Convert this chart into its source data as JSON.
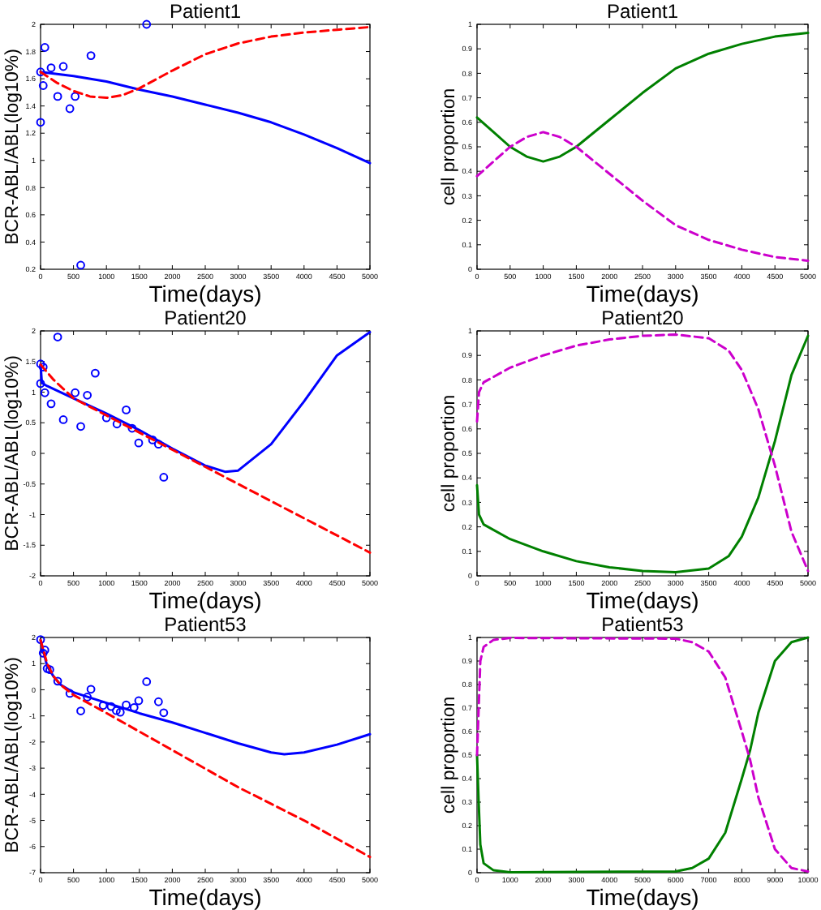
{
  "chart_data": [
    {
      "type": "line",
      "title": "Patient1",
      "xlabel": "Time(days)",
      "ylabel": "BCR-ABL/ABL(log10%)",
      "xlim": [
        0,
        5000
      ],
      "xticks": [
        0,
        500,
        1000,
        1500,
        2000,
        2500,
        3000,
        3500,
        4000,
        4500,
        5000
      ],
      "ylim": [
        0.2,
        2
      ],
      "yticks": [
        0.2,
        0.4,
        0.6,
        0.8,
        1,
        1.2,
        1.4,
        1.6,
        1.8,
        2
      ],
      "grid": false,
      "series": [
        {
          "type": "scatter",
          "marker": "circle",
          "color": "#0000ff",
          "x": [
            0,
            0,
            40,
            65,
            160,
            260,
            345,
            445,
            525,
            610,
            765,
            1610
          ],
          "values": [
            1.28,
            1.65,
            1.55,
            1.83,
            1.68,
            1.47,
            1.69,
            1.38,
            1.47,
            0.23,
            1.77,
            2.0
          ]
        },
        {
          "type": "line",
          "line_style": "solid",
          "color": "#0000ff",
          "x": [
            0,
            500,
            1000,
            1500,
            2000,
            2500,
            3000,
            3500,
            4000,
            4500,
            5000
          ],
          "values": [
            1.65,
            1.62,
            1.58,
            1.52,
            1.47,
            1.41,
            1.35,
            1.28,
            1.19,
            1.09,
            0.98
          ]
        },
        {
          "type": "line",
          "line_style": "dashed",
          "color": "#ff0000",
          "x": [
            0,
            250,
            500,
            750,
            1000,
            1250,
            1500,
            2000,
            2500,
            3000,
            3500,
            4000,
            4500,
            5000
          ],
          "values": [
            1.65,
            1.57,
            1.51,
            1.47,
            1.46,
            1.48,
            1.53,
            1.66,
            1.78,
            1.86,
            1.91,
            1.94,
            1.96,
            1.98
          ]
        }
      ]
    },
    {
      "type": "line",
      "title": "Patient1",
      "xlabel": "Time(days)",
      "ylabel": "cell proportion",
      "xlim": [
        0,
        5000
      ],
      "xticks": [
        0,
        500,
        1000,
        1500,
        2000,
        2500,
        3000,
        3500,
        4000,
        4500,
        5000
      ],
      "ylim": [
        0,
        1
      ],
      "yticks": [
        0,
        0.1,
        0.2,
        0.3,
        0.4,
        0.5,
        0.6,
        0.7,
        0.8,
        0.9,
        1
      ],
      "grid": false,
      "series": [
        {
          "type": "line",
          "line_style": "solid",
          "color": "#008000",
          "x": [
            0,
            250,
            500,
            750,
            1000,
            1250,
            1500,
            2000,
            2500,
            3000,
            3500,
            4000,
            4500,
            5000
          ],
          "values": [
            0.62,
            0.56,
            0.5,
            0.46,
            0.44,
            0.46,
            0.5,
            0.61,
            0.72,
            0.82,
            0.88,
            0.92,
            0.95,
            0.965
          ]
        },
        {
          "type": "line",
          "line_style": "dashed",
          "color": "#cc00cc",
          "x": [
            0,
            250,
            500,
            750,
            1000,
            1250,
            1500,
            2000,
            2500,
            3000,
            3500,
            4000,
            4500,
            5000
          ],
          "values": [
            0.38,
            0.44,
            0.5,
            0.54,
            0.56,
            0.54,
            0.5,
            0.39,
            0.28,
            0.18,
            0.12,
            0.08,
            0.05,
            0.035
          ]
        }
      ]
    },
    {
      "type": "line",
      "title": "Patient20",
      "xlabel": "Time(days)",
      "ylabel": "BCR-ABL/ABL(log10%)",
      "xlim": [
        0,
        5000
      ],
      "xticks": [
        0,
        500,
        1000,
        1500,
        2000,
        2500,
        3000,
        3500,
        4000,
        4500,
        5000
      ],
      "ylim": [
        -2,
        2
      ],
      "yticks": [
        -2,
        -1.5,
        -1,
        -0.5,
        0,
        0.5,
        1,
        1.5,
        2
      ],
      "grid": false,
      "series": [
        {
          "type": "scatter",
          "marker": "circle",
          "color": "#0000ff",
          "x": [
            0,
            40,
            0,
            65,
            160,
            260,
            345,
            610,
            525,
            710,
            830,
            1000,
            1160,
            1300,
            1390,
            1490,
            1700,
            1790,
            1870
          ],
          "values": [
            1.46,
            1.41,
            1.14,
            0.99,
            0.81,
            1.9,
            0.55,
            0.44,
            0.99,
            0.95,
            1.31,
            0.58,
            0.48,
            0.71,
            0.41,
            0.17,
            0.22,
            0.15,
            -0.39
          ]
        },
        {
          "type": "line",
          "line_style": "solid",
          "color": "#0000ff",
          "x": [
            0,
            20,
            100,
            500,
            1000,
            1500,
            2000,
            2500,
            2800,
            3000,
            3500,
            4000,
            4500,
            5000
          ],
          "values": [
            1.45,
            1.15,
            1.1,
            0.9,
            0.65,
            0.38,
            0.08,
            -0.2,
            -0.3,
            -0.28,
            0.15,
            0.85,
            1.6,
            1.98
          ]
        },
        {
          "type": "line",
          "line_style": "dashed",
          "color": "#ff0000",
          "x": [
            0,
            200,
            500,
            1000,
            2000,
            3000,
            4000,
            5000
          ],
          "values": [
            1.45,
            1.2,
            0.9,
            0.62,
            0.06,
            -0.5,
            -1.06,
            -1.62
          ]
        }
      ]
    },
    {
      "type": "line",
      "title": "Patient20",
      "xlabel": "Time(days)",
      "ylabel": "cell proportion",
      "xlim": [
        0,
        5000
      ],
      "xticks": [
        0,
        500,
        1000,
        1500,
        2000,
        2500,
        3000,
        3500,
        4000,
        4500,
        5000
      ],
      "ylim": [
        0,
        1
      ],
      "yticks": [
        0,
        0.1,
        0.2,
        0.3,
        0.4,
        0.5,
        0.6,
        0.7,
        0.8,
        0.9,
        1
      ],
      "grid": false,
      "series": [
        {
          "type": "line",
          "line_style": "solid",
          "color": "#008000",
          "x": [
            0,
            30,
            100,
            500,
            1000,
            1500,
            2000,
            2500,
            3000,
            3500,
            3800,
            4000,
            4250,
            4500,
            4750,
            5000
          ],
          "values": [
            0.37,
            0.25,
            0.21,
            0.15,
            0.1,
            0.06,
            0.035,
            0.02,
            0.015,
            0.03,
            0.08,
            0.16,
            0.32,
            0.55,
            0.82,
            0.98
          ]
        },
        {
          "type": "line",
          "line_style": "dashed",
          "color": "#cc00cc",
          "x": [
            0,
            30,
            100,
            500,
            1000,
            1500,
            2000,
            2500,
            3000,
            3500,
            3800,
            4000,
            4250,
            4500,
            4750,
            5000
          ],
          "values": [
            0.63,
            0.75,
            0.79,
            0.85,
            0.9,
            0.94,
            0.965,
            0.98,
            0.985,
            0.97,
            0.92,
            0.84,
            0.68,
            0.45,
            0.18,
            0.02
          ]
        }
      ]
    },
    {
      "type": "line",
      "title": "Patient53",
      "xlabel": "Time(days)",
      "ylabel": "BCR-ABL/ABL(log10%)",
      "xlim": [
        0,
        5000
      ],
      "xticks": [
        0,
        500,
        1000,
        1500,
        2000,
        2500,
        3000,
        3500,
        4000,
        4500,
        5000
      ],
      "ylim": [
        -7,
        2
      ],
      "yticks": [
        -7,
        -6,
        -5,
        -4,
        -3,
        -2,
        -1,
        0,
        1,
        2
      ],
      "grid": false,
      "series": [
        {
          "type": "scatter",
          "marker": "circle",
          "color": "#0000ff",
          "x": [
            0,
            40,
            65,
            100,
            140,
            260,
            445,
            610,
            710,
            765,
            950,
            1070,
            1150,
            1210,
            1300,
            1420,
            1490,
            1610,
            1790,
            1870
          ],
          "values": [
            1.92,
            1.4,
            1.52,
            0.81,
            0.77,
            0.33,
            -0.14,
            -0.81,
            -0.28,
            0.02,
            -0.6,
            -0.64,
            -0.8,
            -0.86,
            -0.58,
            -0.68,
            -0.42,
            0.31,
            -0.46,
            -0.88
          ]
        },
        {
          "type": "line",
          "line_style": "solid",
          "color": "#0000ff",
          "x": [
            0,
            100,
            200,
            300,
            500,
            1000,
            1500,
            2000,
            2500,
            3000,
            3500,
            3700,
            4000,
            4500,
            5000
          ],
          "values": [
            1.9,
            0.9,
            0.5,
            0.2,
            -0.1,
            -0.5,
            -0.9,
            -1.25,
            -1.65,
            -2.05,
            -2.4,
            -2.47,
            -2.4,
            -2.1,
            -1.7
          ]
        },
        {
          "type": "line",
          "line_style": "dashed",
          "color": "#ff0000",
          "x": [
            0,
            100,
            200,
            300,
            500,
            1000,
            2000,
            3000,
            4000,
            5000
          ],
          "values": [
            1.9,
            1.0,
            0.5,
            0.2,
            -0.2,
            -0.89,
            -2.31,
            -3.73,
            -5.0,
            -6.4
          ]
        }
      ]
    },
    {
      "type": "line",
      "title": "Patient53",
      "xlabel": "Time(days)",
      "ylabel": "cell proportion",
      "xlim": [
        0,
        10000
      ],
      "xticks": [
        0,
        1000,
        2000,
        3000,
        4000,
        5000,
        6000,
        7000,
        8000,
        9000,
        10000
      ],
      "ylim": [
        0,
        1
      ],
      "yticks": [
        0,
        0.1,
        0.2,
        0.3,
        0.4,
        0.5,
        0.6,
        0.7,
        0.8,
        0.9,
        1
      ],
      "grid": false,
      "series": [
        {
          "type": "line",
          "line_style": "solid",
          "color": "#008000",
          "x": [
            0,
            50,
            100,
            200,
            500,
            1000,
            6000,
            6500,
            7000,
            7500,
            8000,
            8250,
            8500,
            9000,
            9500,
            10000
          ],
          "values": [
            0.5,
            0.3,
            0.12,
            0.04,
            0.01,
            0.002,
            0.005,
            0.02,
            0.06,
            0.17,
            0.4,
            0.52,
            0.68,
            0.9,
            0.98,
            1
          ]
        },
        {
          "type": "line",
          "line_style": "dashed",
          "color": "#cc00cc",
          "x": [
            0,
            50,
            100,
            200,
            500,
            1000,
            6000,
            6500,
            7000,
            7500,
            8000,
            8250,
            8500,
            9000,
            9500,
            10000
          ],
          "values": [
            0.5,
            0.7,
            0.9,
            0.96,
            0.99,
            0.998,
            0.995,
            0.98,
            0.94,
            0.83,
            0.6,
            0.48,
            0.32,
            0.1,
            0.02,
            0.005
          ]
        }
      ]
    }
  ]
}
